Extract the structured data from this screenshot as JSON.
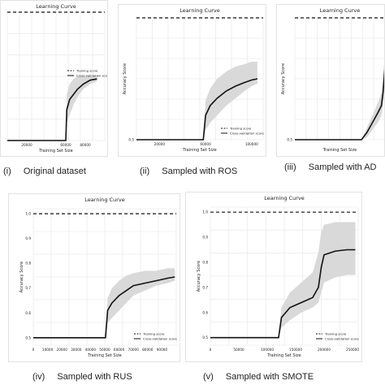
{
  "chart_data": [
    {
      "id": "i",
      "type": "line",
      "title": "Learning Curve",
      "xlabel": "Training Set Size",
      "ylabel": "",
      "ylim": [
        0.5,
        1.0
      ],
      "xlim": [
        0,
        100000
      ],
      "x_ticks": [
        20000,
        60000,
        80000
      ],
      "x_tick_labels": [
        "20000",
        "60000",
        "80000"
      ],
      "y_ticks": [],
      "y_tick_labels": [],
      "grid": true,
      "legend": {
        "position": "right",
        "entries": [
          "Training score",
          "Cross-validation score"
        ]
      },
      "series": [
        {
          "name": "Training score",
          "style": "dashed",
          "x": [
            0,
            100000
          ],
          "y": [
            1.0,
            1.0
          ]
        },
        {
          "name": "Cross-validation score",
          "style": "solid",
          "x": [
            0,
            58000,
            60000,
            61000,
            64000,
            68000,
            72000,
            78000,
            85000,
            92000
          ],
          "y": [
            0.5,
            0.5,
            0.5,
            0.62,
            0.66,
            0.68,
            0.7,
            0.72,
            0.735,
            0.74
          ],
          "band_low": [
            0.5,
            0.5,
            0.5,
            0.57,
            0.6,
            0.64,
            0.67,
            0.7,
            0.72,
            0.73
          ],
          "band_high": [
            0.5,
            0.5,
            0.5,
            0.68,
            0.72,
            0.74,
            0.75,
            0.75,
            0.75,
            0.75
          ]
        }
      ]
    },
    {
      "id": "ii",
      "type": "line",
      "title": "Learning Curve",
      "xlabel": "Training Set Size",
      "ylabel": "Accuracy Score",
      "ylim": [
        0.5,
        1.0
      ],
      "xlim": [
        0,
        110000
      ],
      "x_ticks": [
        20000,
        60000,
        100000
      ],
      "x_tick_labels": [
        "20000",
        "60000",
        "100000"
      ],
      "y_ticks": [
        0.5
      ],
      "y_tick_labels": [
        "0.5"
      ],
      "grid": true,
      "legend": {
        "position": "bottom-right",
        "entries": [
          "Training score",
          "Cross-validation score"
        ]
      },
      "series": [
        {
          "name": "Training score",
          "style": "dashed",
          "x": [
            0,
            110000
          ],
          "y": [
            1.0,
            1.0
          ]
        },
        {
          "name": "Cross-validation score",
          "style": "solid",
          "x": [
            0,
            57000,
            58000,
            60000,
            64000,
            70000,
            78000,
            86000,
            94000,
            100000,
            105000
          ],
          "y": [
            0.5,
            0.5,
            0.5,
            0.6,
            0.64,
            0.67,
            0.7,
            0.72,
            0.735,
            0.745,
            0.75
          ],
          "band_low": [
            0.5,
            0.5,
            0.5,
            0.54,
            0.57,
            0.6,
            0.64,
            0.67,
            0.7,
            0.72,
            0.73
          ],
          "band_high": [
            0.5,
            0.5,
            0.5,
            0.66,
            0.71,
            0.75,
            0.78,
            0.8,
            0.81,
            0.82,
            0.82
          ]
        }
      ]
    },
    {
      "id": "iii",
      "type": "line",
      "title": "Learning Curve",
      "xlabel": "Training Set Size",
      "ylabel": "Accuracy Score",
      "ylim": [
        0.5,
        1.0
      ],
      "xlim": [
        0,
        100000
      ],
      "x_ticks": [],
      "x_tick_labels": [],
      "y_ticks": [
        0.5
      ],
      "y_tick_labels": [
        "0.5"
      ],
      "grid": true,
      "legend": {
        "position": "bottom-right",
        "entries": []
      },
      "series": [
        {
          "name": "Training score",
          "style": "dashed",
          "x": [
            0,
            100000
          ],
          "y": [
            1.0,
            1.0
          ]
        },
        {
          "name": "Cross-validation score",
          "style": "solid",
          "x": [
            0,
            72000,
            74000,
            80000,
            86000,
            92000,
            96000,
            98000,
            100000
          ],
          "y": [
            0.5,
            0.5,
            0.5,
            0.53,
            0.57,
            0.61,
            0.64,
            0.7,
            0.8
          ],
          "band_low": [
            0.5,
            0.5,
            0.5,
            0.51,
            0.54,
            0.57,
            0.6,
            0.64,
            0.72
          ],
          "band_high": [
            0.5,
            0.5,
            0.5,
            0.55,
            0.6,
            0.65,
            0.69,
            0.76,
            0.86
          ]
        }
      ]
    },
    {
      "id": "iv",
      "type": "line",
      "title": "Learning Curve",
      "xlabel": "Training Set Size",
      "ylabel": "Accuracy Score",
      "ylim": [
        0.47,
        1.02
      ],
      "xlim": [
        0,
        100000
      ],
      "x_ticks": [
        0,
        10000,
        20000,
        30000,
        40000,
        50000,
        60000,
        70000,
        80000,
        90000
      ],
      "x_tick_labels": [
        "0",
        "10000",
        "20000",
        "30000",
        "40000",
        "50000",
        "60000",
        "70000",
        "80000",
        "90000"
      ],
      "y_ticks": [
        0.5,
        0.6,
        0.7,
        0.8,
        0.9,
        1.0
      ],
      "y_tick_labels": [
        "0.5",
        "0.6",
        "0.7",
        "0.8",
        "0.9",
        "1.0"
      ],
      "grid": true,
      "legend": {
        "position": "bottom-right",
        "entries": [
          "Training score",
          "Cross-validation score"
        ]
      },
      "series": [
        {
          "name": "Training score",
          "style": "dashed",
          "x": [
            0,
            100000
          ],
          "y": [
            1.0,
            1.0
          ]
        },
        {
          "name": "Cross-validation score",
          "style": "solid",
          "x": [
            0,
            50000,
            50500,
            52000,
            55000,
            60000,
            65000,
            70000,
            78000,
            86000,
            94000,
            99000
          ],
          "y": [
            0.5,
            0.5,
            0.5,
            0.61,
            0.64,
            0.67,
            0.69,
            0.71,
            0.72,
            0.73,
            0.74,
            0.745
          ],
          "band_low": [
            0.5,
            0.5,
            0.5,
            0.56,
            0.58,
            0.61,
            0.64,
            0.67,
            0.69,
            0.71,
            0.72,
            0.73
          ],
          "band_high": [
            0.5,
            0.5,
            0.5,
            0.66,
            0.7,
            0.73,
            0.75,
            0.76,
            0.77,
            0.77,
            0.78,
            0.78
          ]
        }
      ]
    },
    {
      "id": "v",
      "type": "line",
      "title": "Learning Curve",
      "xlabel": "Training Set Size",
      "ylabel": "Accuracy Score",
      "ylim": [
        0.47,
        1.02
      ],
      "xlim": [
        0,
        260000
      ],
      "x_ticks": [
        0,
        50000,
        100000,
        150000,
        200000,
        250000
      ],
      "x_tick_labels": [
        "0",
        "50000",
        "100000",
        "150000",
        "200000",
        "250000"
      ],
      "y_ticks": [
        0.5,
        0.6,
        0.7,
        0.8,
        0.9,
        1.0
      ],
      "y_tick_labels": [
        "0.5",
        "0.6",
        "0.7",
        "0.8",
        "0.9",
        "1.0"
      ],
      "grid": true,
      "legend": {
        "position": "bottom-right",
        "entries": [
          "Training score",
          "Cross-validation score"
        ]
      },
      "series": [
        {
          "name": "Training score",
          "style": "dashed",
          "x": [
            0,
            260000
          ],
          "y": [
            1.0,
            1.0
          ]
        },
        {
          "name": "Cross-validation score",
          "style": "solid",
          "x": [
            0,
            119000,
            120000,
            125000,
            140000,
            160000,
            180000,
            190000,
            195000,
            200000,
            220000,
            240000,
            255000
          ],
          "y": [
            0.5,
            0.5,
            0.5,
            0.58,
            0.62,
            0.64,
            0.66,
            0.7,
            0.78,
            0.83,
            0.845,
            0.85,
            0.85
          ],
          "band_low": [
            0.5,
            0.5,
            0.5,
            0.54,
            0.57,
            0.6,
            0.62,
            0.64,
            0.68,
            0.72,
            0.74,
            0.75,
            0.75
          ],
          "band_high": [
            0.5,
            0.5,
            0.5,
            0.62,
            0.68,
            0.72,
            0.76,
            0.84,
            0.92,
            0.95,
            0.96,
            0.96,
            0.96
          ]
        }
      ]
    }
  ],
  "captions": [
    {
      "num": "(i)",
      "text": "Original dataset"
    },
    {
      "num": "(ii)",
      "text": "Sampled with ROS"
    },
    {
      "num": "(iii)",
      "text": "Sampled with AD"
    },
    {
      "num": "(iv)",
      "text": "Sampled with RUS"
    },
    {
      "num": "(v)",
      "text": "Sampled with SMOTE"
    }
  ],
  "colors": {
    "line": "#111111",
    "band": "#d9d9d9",
    "grid": "#ebebeb",
    "text": "#222222"
  }
}
